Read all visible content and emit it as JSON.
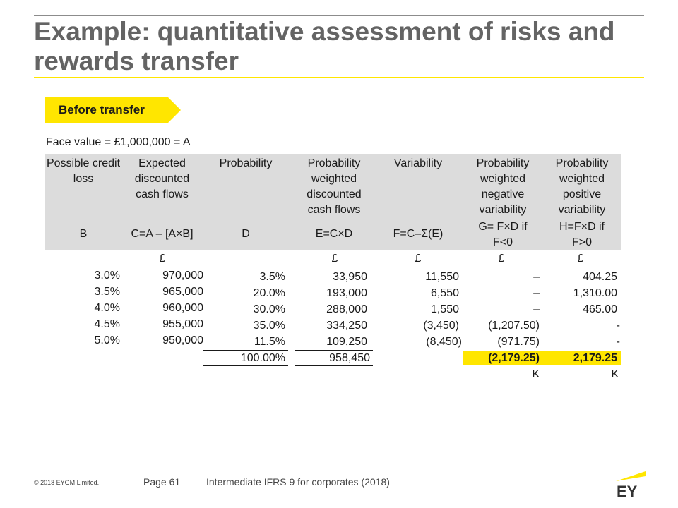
{
  "slide": {
    "title": "Example: quantitative assessment of risks and rewards transfer",
    "banner": "Before transfer",
    "face_value": "Face value  = £1,000,000 = A"
  },
  "columns": [
    {
      "name": "Possible credit loss",
      "formula": "B"
    },
    {
      "name": "Expected discounted cash flows",
      "formula": "C=A – [A×B]"
    },
    {
      "name": "Probability",
      "formula": "D"
    },
    {
      "name": "Probability weighted discounted cash flows",
      "formula": "E=C×D"
    },
    {
      "name": "Variability",
      "formula": "F=C–Σ(E)"
    },
    {
      "name": "Probability weighted negative variability",
      "formula": "G= F×D if F<0"
    },
    {
      "name": "Probability weighted positive variability",
      "formula": "H=F×D if F>0"
    }
  ],
  "currency_row": [
    "£",
    "£",
    "£",
    "£",
    "£"
  ],
  "rows": [
    [
      "3.0%",
      "970,000",
      "3.5%",
      "33,950",
      "11,550",
      "–",
      "404.25"
    ],
    [
      "3.5%",
      "965,000",
      "20.0%",
      "193,000",
      "6,550",
      "–",
      "1,310.00"
    ],
    [
      "4.0%",
      "960,000",
      "30.0%",
      "288,000",
      "1,550",
      "–",
      "465.00"
    ],
    [
      "4.5%",
      "955,000",
      "35.0%",
      "334,250",
      "(3,450)",
      "(1,207.50)",
      "-"
    ],
    [
      "5.0%",
      "950,000",
      "11.5%",
      "109,250",
      "(8,450)",
      "(971.75)",
      "-"
    ]
  ],
  "totals": {
    "probability": "100.00%",
    "weighted_cf": "958,450",
    "negative": "(2,179.25)",
    "positive": "2,179.25"
  },
  "markers": {
    "negative": "K",
    "positive": "K"
  },
  "footer": {
    "copyright": "© 2018  EYGM Limited.",
    "page": "Page 61",
    "course": "Intermediate IFRS 9 for corporates (2018)",
    "logo_text": "EY"
  },
  "colors": {
    "accent": "#ffe600",
    "header_bg": "#dcdcdc",
    "title": "#646464"
  }
}
